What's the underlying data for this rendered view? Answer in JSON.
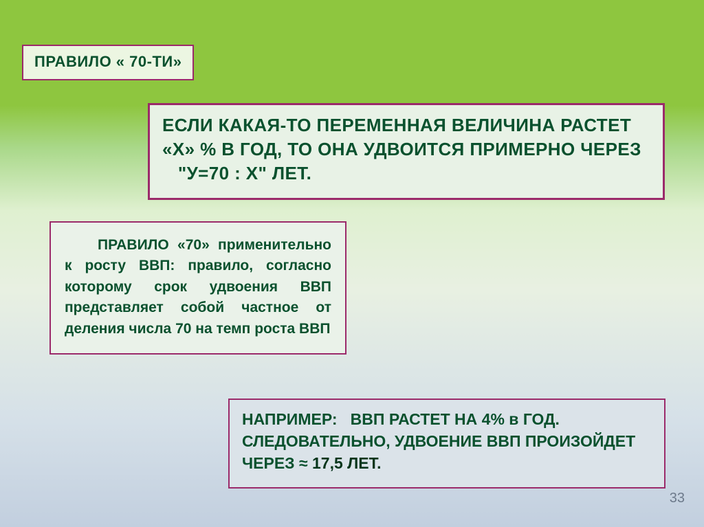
{
  "slide": {
    "title": "ПРАВИЛО « 70-ТИ»",
    "main_rule": "ЕСЛИ КАКАЯ-ТО ПЕРЕМЕННАЯ ВЕЛИЧИНА РАСТЕТ «Х» % В ГОД, ТО ОНА УДВОИТСЯ ПРИМЕРНО ЧЕРЕЗ    \"У=70 : Х\" ЛЕТ.",
    "gdp_rule": "ПРАВИЛО «70» применительно к росту ВВП: правило, согласно которому срок удвоения ВВП представляет собой частное от деления числа 70 на темп роста ВВП",
    "example_prefix": "НАПРИМЕР:   ВВП РАСТЕТ НА 4% в ГОД. СЛЕДОВАТЕЛЬНО, УДВОЕНИЕ ВВП ПРОИЗОЙДЕТ ЧЕРЕЗ ≈ ",
    "example_bold": "17,5 ЛЕТ.",
    "page_number": "33",
    "colors": {
      "border": "#9b2a6a",
      "text": "#0a512e",
      "bg_top": "#8ec63f",
      "bg_bottom": "#c2cfdf"
    },
    "font_sizes": {
      "title": 22,
      "main_rule": 26,
      "gdp": 21,
      "example": 23,
      "page_num": 20
    }
  }
}
